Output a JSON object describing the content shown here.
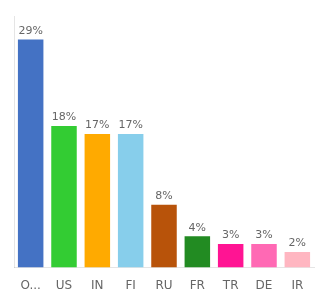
{
  "chart_data": {
    "type": "bar",
    "categories": [
      "O...",
      "US",
      "IN",
      "FI",
      "RU",
      "FR",
      "TR",
      "DE",
      "IR"
    ],
    "values": [
      29,
      18,
      17,
      17,
      8,
      4,
      3,
      3,
      2
    ],
    "value_labels": [
      "29%",
      "18%",
      "17%",
      "17%",
      "8%",
      "4%",
      "3%",
      "3%",
      "2%"
    ],
    "colors": [
      "#4472c4",
      "#33cc33",
      "#ffaa00",
      "#87ceeb",
      "#b8530a",
      "#228b22",
      "#ff1493",
      "#ff69b4",
      "#ffb6c1"
    ],
    "ylim": [
      0,
      32
    ],
    "grid": false,
    "data_labels": true,
    "tick_labels": "x"
  }
}
